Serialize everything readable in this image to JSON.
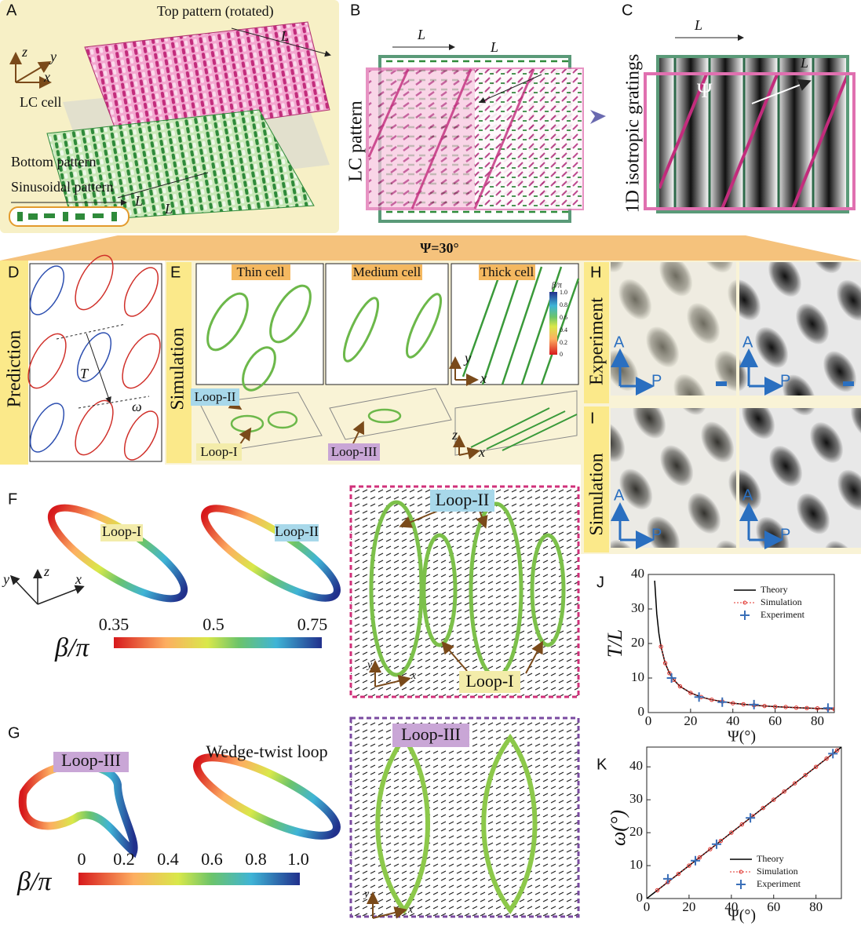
{
  "panels": {
    "a": {
      "label": "A",
      "top": "Top pattern (rotated)",
      "l_top": "L",
      "lc_cell": "LC cell",
      "bottom": "Bottom pattern",
      "sinusoidal": "Sinusoidal pattern",
      "l_sin": "L",
      "l_bottom": "L",
      "axis_z": "z",
      "axis_y": "y",
      "axis_x": "x"
    },
    "b": {
      "label": "B",
      "l_left": "L",
      "l_top": "L",
      "side": "LC pattern"
    },
    "c": {
      "label": "C",
      "l_left": "L",
      "psi": "Ψ",
      "l_right": "L",
      "side": "1D isotropic gratings"
    },
    "banner": "Ψ=30°",
    "d": {
      "label": "D",
      "side": "Prediction",
      "t": "T",
      "omega": "ω"
    },
    "e": {
      "label": "E",
      "side": "Simulation",
      "thin": "Thin cell",
      "medium": "Medium cell",
      "thick": "Thick cell",
      "loop2": "Loop-II",
      "loop1": "Loop-I",
      "loop3": "Loop-III",
      "axis_y": "y",
      "axis_x": "x",
      "axis_z": "z",
      "axis_x2": "x",
      "cbar_label": "β/π",
      "cbar_ticks": [
        "1.0",
        "0.8",
        "0.6",
        "0.4",
        "0.2",
        "0"
      ]
    },
    "h": {
      "label": "H",
      "side": "Experiment",
      "a1": "A",
      "p1": "P",
      "a2": "A",
      "p2": "P"
    },
    "i": {
      "label": "I",
      "side": "Simulation",
      "a1": "A",
      "p1": "P",
      "a2": "A",
      "p2": "P"
    },
    "f": {
      "label": "F",
      "loop1": "Loop-I",
      "loop2": "Loop-II",
      "axis_y": "y",
      "axis_z": "z",
      "axis_x": "x",
      "cbar_label": "β/π",
      "cbar_ticks": [
        "0.35",
        "0.5",
        "0.75"
      ],
      "img_loop2": "Loop-II",
      "img_loop1": "Loop-I",
      "img_y": "y",
      "img_x": "x"
    },
    "g": {
      "label": "G",
      "loop3": "Loop-III",
      "wedge": "Wedge-twist loop",
      "cbar_label": "β/π",
      "cbar_ticks": [
        "0",
        "0.2",
        "0.4",
        "0.6",
        "0.8",
        "1.0"
      ],
      "img_loop3": "Loop-III",
      "img_y": "y",
      "img_x": "x"
    }
  },
  "chart_data": [
    {
      "type": "line",
      "label": "J",
      "y_label": "T/L",
      "x_label": "Ψ(°)",
      "xlim": [
        0,
        88
      ],
      "ylim": [
        0,
        40
      ],
      "xticks": [
        0,
        20,
        40,
        60,
        80
      ],
      "yticks": [
        0,
        10,
        20,
        30,
        40
      ],
      "series": [
        {
          "name": "Theory",
          "color": "#000000",
          "marker": "line",
          "x": [
            3,
            4,
            5,
            6,
            8,
            10,
            12,
            15,
            20,
            25,
            30,
            40,
            50,
            60,
            70,
            80,
            88
          ],
          "values": [
            38.2,
            28.6,
            22.9,
            19.1,
            14.3,
            11.4,
            9.5,
            7.6,
            5.7,
            4.5,
            3.7,
            2.7,
            2.1,
            1.7,
            1.4,
            1.2,
            1.0
          ]
        },
        {
          "name": "Simulation",
          "color": "#e0302a",
          "marker": "dots",
          "x": [
            6,
            8,
            10,
            12,
            15,
            20,
            25,
            30,
            35,
            40,
            45,
            50,
            55,
            60,
            65,
            70,
            75,
            80,
            85,
            88
          ],
          "values": [
            19.1,
            14.3,
            11.4,
            9.5,
            7.6,
            5.7,
            4.5,
            3.7,
            3.2,
            2.7,
            2.4,
            2.1,
            1.9,
            1.7,
            1.6,
            1.4,
            1.3,
            1.2,
            1.1,
            1.0
          ]
        },
        {
          "name": "Experiment",
          "color": "#3a6fb8",
          "marker": "plus",
          "x": [
            11,
            24,
            35,
            50,
            85
          ],
          "values": [
            10,
            4.5,
            3,
            2.3,
            1.3
          ]
        }
      ]
    },
    {
      "type": "line",
      "label": "K",
      "y_label": "ω(°)",
      "x_label": "Ψ(°)",
      "xlim": [
        0,
        92
      ],
      "ylim": [
        0,
        46
      ],
      "xticks": [
        0,
        20,
        40,
        60,
        80
      ],
      "yticks": [
        0,
        10,
        20,
        30,
        40
      ],
      "series": [
        {
          "name": "Theory",
          "color": "#000000",
          "marker": "line",
          "x": [
            0,
            92
          ],
          "values": [
            0,
            46
          ]
        },
        {
          "name": "Simulation",
          "color": "#e0302a",
          "marker": "dots",
          "x": [
            5,
            10,
            15,
            20,
            25,
            30,
            35,
            40,
            45,
            50,
            55,
            60,
            65,
            70,
            75,
            80,
            85,
            90
          ],
          "values": [
            2.5,
            5,
            7.5,
            10,
            12.5,
            15,
            17.5,
            20,
            22.5,
            25,
            27.5,
            30,
            32.5,
            35,
            37.5,
            40,
            42.5,
            45
          ]
        },
        {
          "name": "Experiment",
          "color": "#3a6fb8",
          "marker": "plus",
          "x": [
            10,
            23,
            33,
            49,
            88
          ],
          "values": [
            6,
            11.5,
            16.5,
            24.5,
            44
          ]
        }
      ]
    }
  ]
}
